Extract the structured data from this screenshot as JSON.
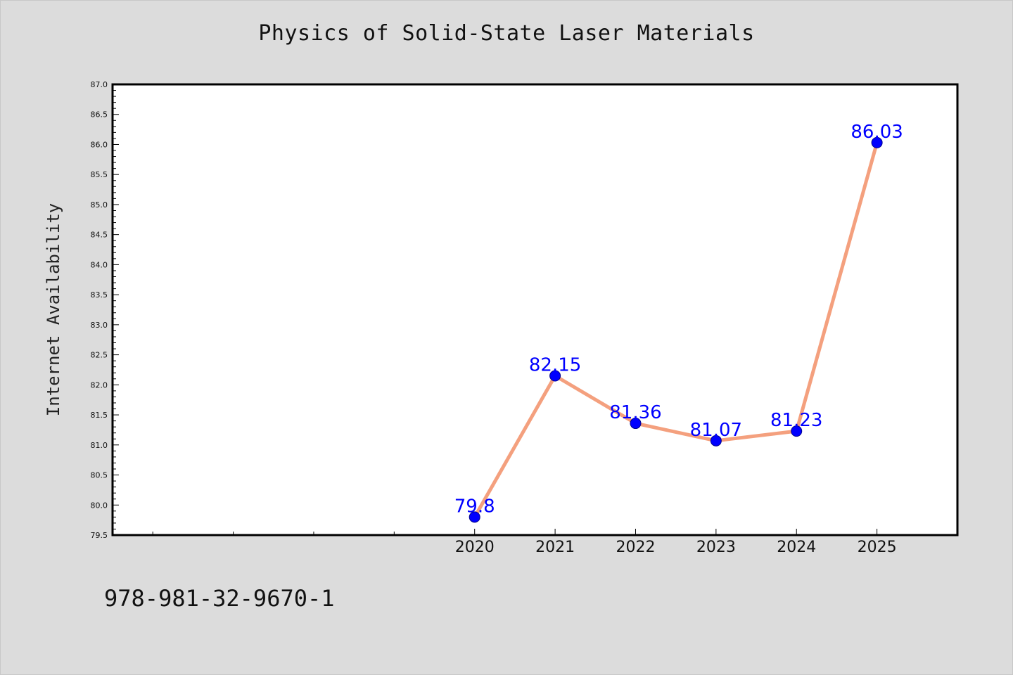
{
  "title": "Physics of Solid-State Laser Materials",
  "isbn": "978-981-32-9670-1",
  "chart_data": {
    "type": "line",
    "title": "Physics of Solid-State Laser Materials",
    "xlabel": "",
    "ylabel": "Internet Availability",
    "x": [
      2020,
      2021,
      2022,
      2023,
      2024,
      2025
    ],
    "x_tick_labels": [
      "2020",
      "2021",
      "2022",
      "2023",
      "2024",
      "2025"
    ],
    "series": [
      {
        "values": [
          79.8,
          82.15,
          81.36,
          81.07,
          81.23,
          86.03
        ],
        "data_labels": [
          "79.8",
          "82.15",
          "81.36",
          "81.07",
          "81.23",
          "86.03"
        ]
      }
    ],
    "xlim": [
      2015.5,
      2026
    ],
    "ylim": [
      79.5,
      87.0
    ],
    "y_tick_labels": [
      "79.5",
      "80.0",
      "80.5",
      "81.0",
      "81.5",
      "82.0",
      "82.5",
      "83.0",
      "83.5",
      "84.0",
      "84.5",
      "85.0",
      "85.5",
      "86.0",
      "86.5",
      "87.0"
    ],
    "grid": false,
    "colors": {
      "line": "#f4a07e",
      "marker": "#0000ff",
      "data_label": "#0000ff",
      "background": "#dcdcdc",
      "plot_background": "#ffffff"
    }
  }
}
